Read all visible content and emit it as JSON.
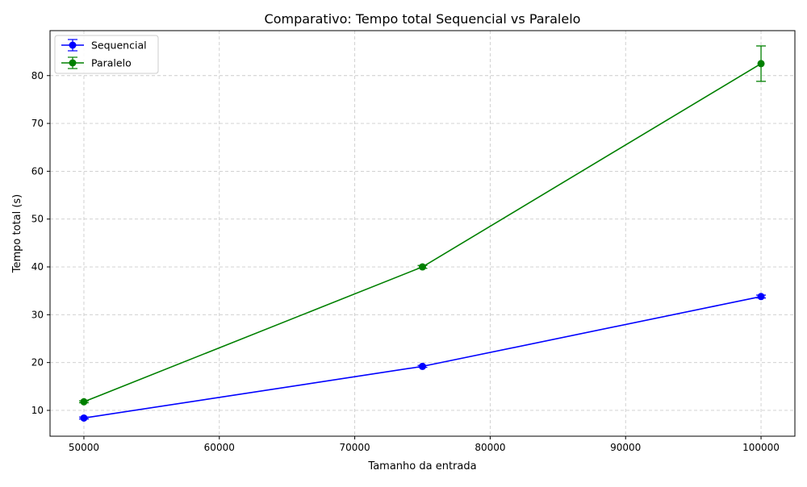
{
  "chart_data": {
    "type": "line",
    "title": "Comparativo: Tempo total Sequencial vs Paralelo",
    "xlabel": "Tamanho da entrada",
    "ylabel": "Tempo total (s)",
    "x": [
      50000,
      75000,
      100000
    ],
    "xlim": [
      47500,
      102500
    ],
    "ylim": [
      4.6,
      89.4
    ],
    "xticks": [
      50000,
      60000,
      70000,
      80000,
      90000,
      100000
    ],
    "yticks": [
      10,
      20,
      30,
      40,
      50,
      60,
      70,
      80
    ],
    "grid": true,
    "legend_position": "upper-left",
    "series": [
      {
        "name": "Sequencial",
        "color": "#0000ff",
        "values": [
          8.4,
          19.2,
          33.8
        ],
        "errors": [
          0.2,
          0.2,
          0.3
        ]
      },
      {
        "name": "Paralelo",
        "color": "#008000",
        "values": [
          11.8,
          40.0,
          82.5
        ],
        "errors": [
          0.2,
          0.3,
          3.7
        ]
      }
    ]
  }
}
